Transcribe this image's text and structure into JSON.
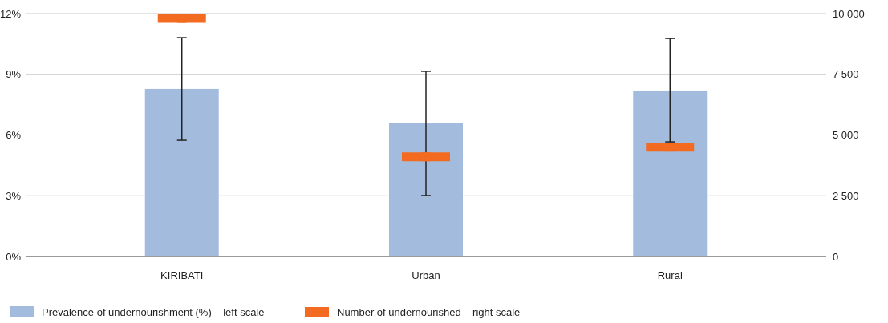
{
  "chart_data": {
    "type": "bar",
    "categories": [
      "KIRIBATI",
      "Urban",
      "Rural"
    ],
    "series": [
      {
        "name": "Prevalence of undernourishment (%) – left scale",
        "color": "#a3bcdd",
        "values": [
          8.28,
          6.61,
          8.2
        ],
        "errors": [
          [
            5.74,
            10.81
          ],
          [
            3.01,
            9.15
          ],
          [
            5.66,
            10.77
          ]
        ]
      },
      {
        "name": "Number of undernourished – right scale",
        "type": "scatter",
        "axis": "y2",
        "marker": "square",
        "color": "#f26b21",
        "x": [
          "KIRIBATI",
          "Urban",
          "Rural"
        ],
        "values": [
          9800,
          4100,
          4500
        ]
      }
    ],
    "ylim": [
      0,
      12
    ],
    "yticks": [
      {
        "value": 0,
        "label": "0%"
      },
      {
        "value": 3,
        "label": "3%"
      },
      {
        "value": 6,
        "label": "6%"
      },
      {
        "value": 9,
        "label": "9%"
      },
      {
        "value": 12,
        "label": "12%"
      }
    ],
    "y2lim": [
      0,
      10000
    ],
    "y2ticks": [
      0,
      {
        "value": 2500,
        "label": "2 500"
      },
      {
        "value": 5000,
        "label": "5 000"
      },
      {
        "value": 7500,
        "label": "7 500"
      },
      {
        "value": 10000,
        "label": "10 000"
      }
    ],
    "grid": "y",
    "legend": "bottom"
  }
}
